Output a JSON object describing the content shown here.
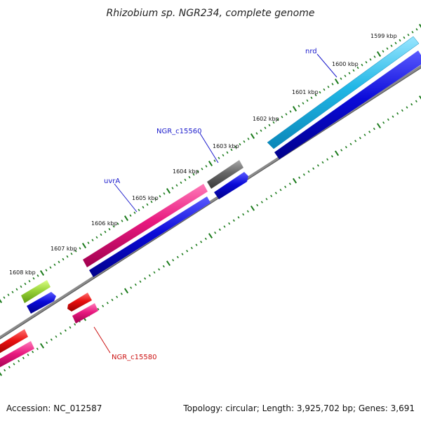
{
  "title": "Rhizobium sp. NGR234, complete genome",
  "accession": "Accession: NC_012587",
  "topology": "Topology: circular; Length: 3,925,702 bp; Genes: 3,691",
  "colors": {
    "backbone": "#8a8a8a",
    "tick": "#1a7a1a",
    "label_blue": "#1a1acc",
    "label_red": "#cc1111",
    "cyan": "#21b7e6",
    "blue": "#0a0ad8",
    "magenta": "#e8197f",
    "gray": "#676767",
    "lime": "#9ad43a",
    "red": "#e81010"
  },
  "tick_labels": [
    "1599 kbp",
    "1600 kbp",
    "1601 kbp",
    "1602 kbp",
    "1603 kbp",
    "1604 kbp",
    "1605 kbp",
    "1606 kbp",
    "1607 kbp",
    "1608 kbp"
  ],
  "gene_labels": {
    "nrd": "nrd",
    "ngr_c15560": "NGR_c15560",
    "uvrA": "uvrA",
    "ngr_c15580": "NGR_c15580"
  }
}
